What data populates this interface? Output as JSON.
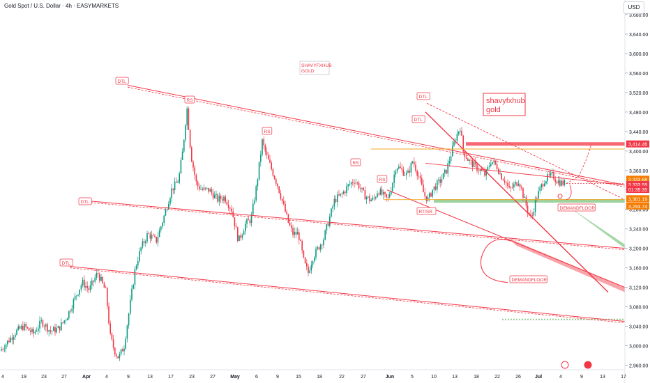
{
  "header": {
    "title": "Gold Spot / U.S. Dollar · 4h · EASYMARKETS",
    "currency": "USD"
  },
  "chart_data": {
    "type": "candlestick",
    "colors": {
      "up": "#089981",
      "down": "#f23645",
      "annotation": "#f23645",
      "support": "#4caf50",
      "level": "#f5a623"
    },
    "y_axis": {
      "ticks": [
        "3,680.00",
        "3,640.00",
        "3,600.00",
        "3,560.00",
        "3,520.00",
        "3,480.00",
        "3,440.00",
        "3,400.00",
        "3,360.00",
        "3,320.00",
        "3,280.00",
        "3,240.00",
        "3,200.00",
        "3,160.00",
        "3,120.00",
        "3,080.00",
        "3,040.00",
        "3,000.00",
        "2,960.00"
      ],
      "ylim": [
        2950,
        3700
      ]
    },
    "x_axis": {
      "ticks": [
        "4",
        "19",
        "23",
        "27",
        "Apr",
        "4",
        "9",
        "13",
        "17",
        "23",
        "27",
        "May",
        "6",
        "9",
        "15",
        "18",
        "22",
        "27",
        "Jun",
        "5",
        "10",
        "13",
        "18",
        "22",
        "26",
        "Jul",
        "4",
        "9",
        "13",
        "17"
      ]
    },
    "price_tags": [
      {
        "label": "3,414.46",
        "value": 3414.46,
        "style": "red"
      },
      {
        "label": "3,333.68",
        "value": 3333.68,
        "style": "orange"
      },
      {
        "label": "3,333.59",
        "value": 3333.59,
        "style": "red"
      },
      {
        "label": "01:35:35",
        "value": 3321,
        "style": "red"
      },
      {
        "label": "3,301.19",
        "value": 3301.19,
        "style": "orange"
      },
      {
        "label": "3,293.74",
        "value": 3293.74,
        "style": "orange"
      }
    ],
    "annotations": [
      {
        "text": "DTL"
      },
      {
        "text": "RS"
      },
      {
        "text": "RS"
      },
      {
        "text": "DTL"
      },
      {
        "text": "RS"
      },
      {
        "text": "RS"
      },
      {
        "text": "DTL"
      },
      {
        "text": "RT/SR"
      },
      {
        "text": "DTL"
      },
      {
        "text": "DTL"
      },
      {
        "text": "DEMANDFLOOR"
      },
      {
        "text": "DEMANDFLOOR"
      }
    ],
    "watermarks": [
      {
        "line1": "SHAVYFXHUB",
        "line2": "GOLD"
      },
      {
        "line1": "shavyfxhub",
        "line2": "gold"
      }
    ]
  }
}
